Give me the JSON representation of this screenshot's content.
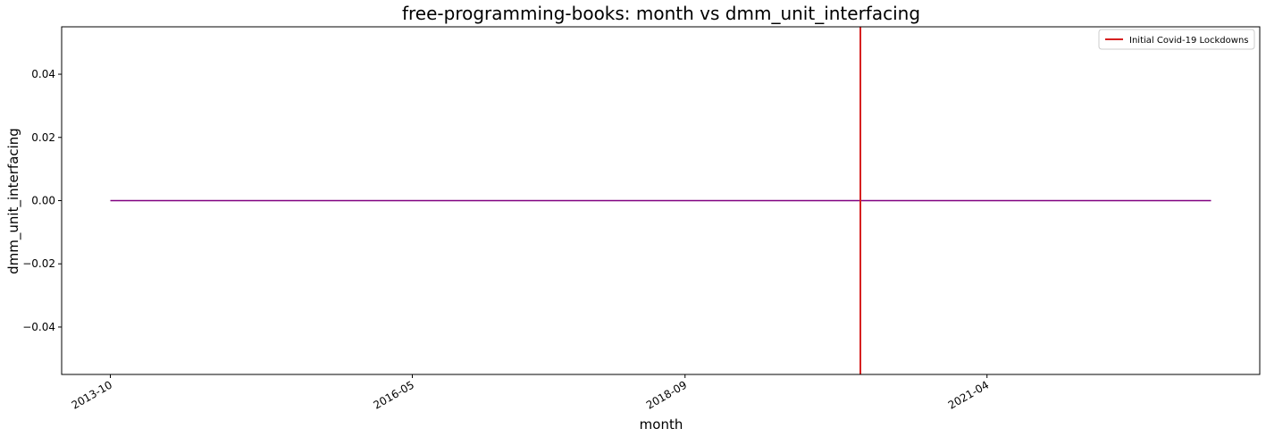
{
  "chart_data": {
    "type": "line",
    "title": "free-programming-books: month vs dmm_unit_interfacing",
    "xlabel": "month",
    "ylabel": "dmm_unit_interfacing",
    "x_type": "date",
    "xlim": [
      "2013-05",
      "2023-08"
    ],
    "ylim": [
      -0.055,
      0.055
    ],
    "x_ticks": [
      "2013-10",
      "2016-05",
      "2018-09",
      "2021-04"
    ],
    "y_ticks": [
      {
        "value": 0.04,
        "label": "0.04"
      },
      {
        "value": 0.02,
        "label": "0.02"
      },
      {
        "value": 0.0,
        "label": "0.00"
      },
      {
        "value": -0.02,
        "label": "−0.02"
      },
      {
        "value": -0.04,
        "label": "−0.04"
      }
    ],
    "series": [
      {
        "color": "#800080",
        "x": [
          "2013-10",
          "2023-03"
        ],
        "y": [
          0.0,
          0.0
        ]
      }
    ],
    "vlines": [
      {
        "name": "Initial Covid-19 Lockdowns",
        "x": "2020-03",
        "color": "#d62020"
      }
    ],
    "legend": {
      "position": "top-right",
      "entries": [
        {
          "label": "Initial Covid-19 Lockdowns",
          "color": "#d62020"
        }
      ]
    },
    "grid": false
  }
}
